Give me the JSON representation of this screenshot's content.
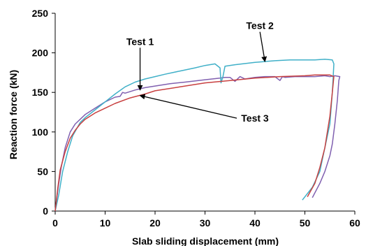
{
  "chart_data": {
    "type": "line",
    "title": "",
    "xlabel": "Slab sliding displacement (mm)",
    "ylabel": "Reaction force (kN)",
    "xlim": [
      0,
      60
    ],
    "ylim": [
      0,
      250
    ],
    "xticks": [
      "0",
      "10",
      "20",
      "30",
      "40",
      "50",
      "60"
    ],
    "yticks": [
      "0",
      "50",
      "100",
      "150",
      "200",
      "250"
    ],
    "grid": false,
    "legend": "none",
    "series": [
      {
        "name": "Test 1",
        "color": "#8060b0",
        "x": [
          0,
          0.6,
          1.2,
          2,
          3,
          4,
          5,
          6,
          8,
          10,
          12,
          13,
          13.5,
          14,
          16,
          18,
          20,
          23,
          26,
          30,
          33,
          34,
          35,
          36,
          37,
          38,
          40,
          42,
          44,
          45,
          45.5,
          46,
          48,
          50,
          52,
          54,
          55,
          56,
          57,
          56.8,
          56.5,
          56,
          55.5,
          55,
          54,
          53,
          51.5
        ],
        "y": [
          0,
          30,
          55,
          80,
          100,
          110,
          116,
          122,
          130,
          138,
          144,
          145,
          150,
          149,
          153,
          156,
          158,
          161,
          163,
          166,
          168,
          169,
          169,
          164,
          170,
          167,
          169,
          170,
          170,
          165,
          170,
          169,
          170,
          170,
          170,
          171,
          170,
          171,
          170,
          165,
          140,
          110,
          85,
          70,
          50,
          35,
          17
        ]
      },
      {
        "name": "Test 2",
        "color": "#40b0c8",
        "x": [
          0,
          0.7,
          1.5,
          2.5,
          3.5,
          5,
          6,
          8,
          10,
          12,
          14,
          16,
          18,
          20,
          22,
          25,
          28,
          30,
          32,
          33,
          33.2,
          33.6,
          34,
          36,
          40,
          44,
          47,
          50,
          52,
          54,
          55.5,
          55.8,
          55.5,
          55,
          54,
          53,
          51.5,
          49.5
        ],
        "y": [
          0,
          20,
          50,
          75,
          95,
          112,
          118,
          128,
          138,
          148,
          157,
          163,
          167,
          170,
          173,
          177,
          181,
          184,
          186,
          181,
          162,
          170,
          183,
          185,
          188,
          190,
          191,
          191,
          191,
          192,
          191,
          186,
          150,
          110,
          80,
          50,
          30,
          14
        ]
      },
      {
        "name": "",
        "color": "#c84040",
        "x": [
          0,
          0.5,
          1,
          2,
          3,
          4,
          5,
          6,
          8,
          10,
          12,
          15,
          18,
          20,
          25,
          30,
          35,
          40,
          45,
          50,
          52,
          54,
          55,
          55.8,
          55.5,
          55,
          54.5,
          54,
          53,
          52,
          50.5
        ],
        "y": [
          0,
          28,
          52,
          75,
          92,
          102,
          110,
          116,
          124,
          130,
          136,
          143,
          148,
          152,
          157,
          162,
          165,
          168,
          170,
          171,
          172,
          172,
          172,
          170,
          150,
          120,
          100,
          80,
          55,
          35,
          18
        ]
      }
    ],
    "annotations": [
      {
        "text": "Test 1",
        "x": 17,
        "y": 210,
        "target_x": 17,
        "target_y": 153
      },
      {
        "text": "Test 2",
        "x": 41,
        "y": 230,
        "target_x": 42,
        "target_y": 189
      },
      {
        "text": "Test 3",
        "x": 40,
        "y": 113,
        "target_x": 17,
        "target_y": 146
      }
    ]
  }
}
